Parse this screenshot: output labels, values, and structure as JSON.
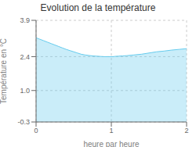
{
  "chart_data": {
    "type": "area",
    "title": "Evolution de la température",
    "xlabel": "heure par heure",
    "ylabel": "Température en °C",
    "x": [
      0.0,
      0.05,
      0.1,
      0.15,
      0.2,
      0.25,
      0.3,
      0.35,
      0.4,
      0.45,
      0.5,
      0.55,
      0.6,
      0.65,
      0.7,
      0.75,
      0.8,
      0.85,
      0.9,
      0.95,
      1.0,
      1.02,
      1.05,
      1.1,
      1.15,
      1.2,
      1.3,
      1.4,
      1.5,
      1.6,
      1.7,
      1.8,
      1.9,
      2.0
    ],
    "values": [
      3.18,
      3.12,
      3.06,
      3.0,
      2.94,
      2.88,
      2.82,
      2.76,
      2.7,
      2.65,
      2.6,
      2.55,
      2.5,
      2.47,
      2.45,
      2.43,
      2.42,
      2.41,
      2.4,
      2.4,
      2.4,
      2.4,
      2.41,
      2.42,
      2.43,
      2.44,
      2.47,
      2.5,
      2.55,
      2.6,
      2.63,
      2.67,
      2.7,
      2.73
    ],
    "color": "#66ccee",
    "xlim": [
      0,
      2
    ],
    "xticks": [
      0,
      1,
      2
    ],
    "ylim": [
      -0.3,
      3.9
    ],
    "yticks": [
      -0.3,
      {
        "value": 1.0,
        "label": "1.0"
      },
      2.4,
      3.9
    ],
    "grid": true
  }
}
